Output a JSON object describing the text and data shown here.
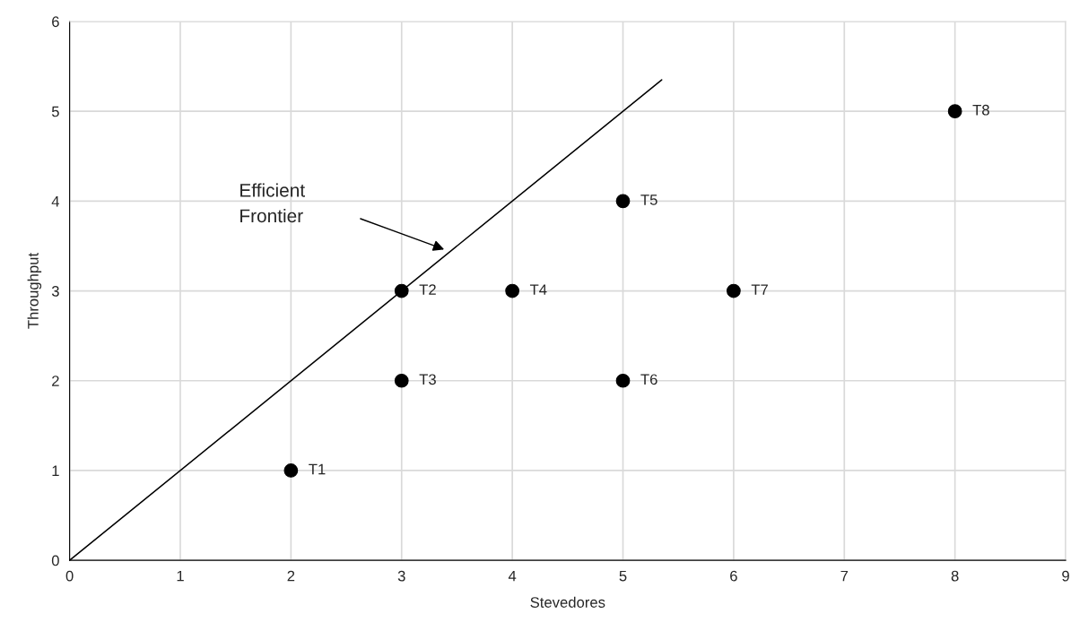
{
  "chart_data": {
    "type": "scatter",
    "xlabel": "Stevedores",
    "ylabel": "Throughput",
    "xlim": [
      0,
      9
    ],
    "xticks": [
      0,
      1,
      2,
      3,
      4,
      5,
      6,
      7,
      8,
      9
    ],
    "ylim": [
      0,
      6
    ],
    "yticks": [
      0,
      1,
      2,
      3,
      4,
      5,
      6
    ],
    "grid": true,
    "marker": "circle",
    "series": [
      {
        "color": "#000000",
        "x": [
          2,
          3,
          3,
          4,
          5,
          5,
          6,
          8
        ],
        "values": [
          1,
          3,
          2,
          3,
          4,
          2,
          3,
          5
        ]
      },
      {
        "type": "line",
        "color": "#000000",
        "x": [
          0,
          5.35
        ],
        "values": [
          0,
          5.35
        ],
        "marker": "none"
      }
    ],
    "annotations": [
      "Efficient\nFrontier",
      {
        "text": "T1",
        "x": 2,
        "y": 1
      },
      {
        "text": "T2",
        "x": 3,
        "y": 3
      },
      {
        "text": "T3",
        "x": 3,
        "y": 2
      },
      {
        "text": "T4",
        "x": 4,
        "y": 3
      },
      {
        "text": "T5",
        "x": 5,
        "y": 4
      },
      {
        "text": "T6",
        "x": 5,
        "y": 2
      },
      {
        "text": "T7",
        "x": 6,
        "y": 3
      },
      {
        "text": "T8",
        "x": 8,
        "y": 5
      }
    ]
  }
}
